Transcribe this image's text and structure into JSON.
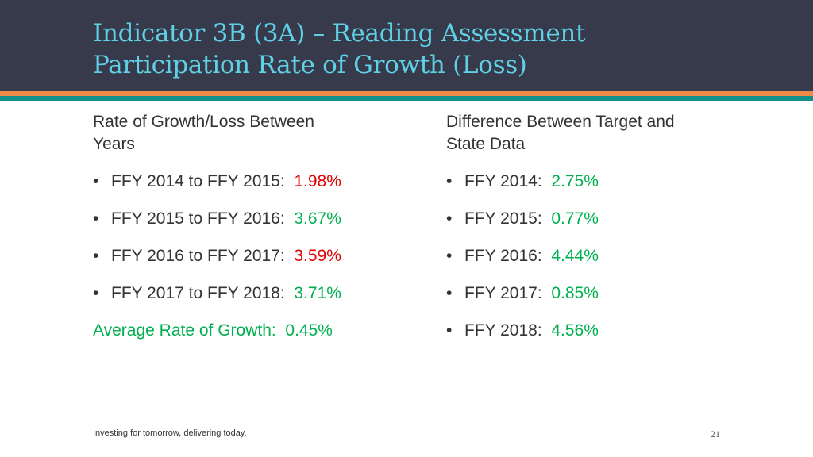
{
  "header": {
    "title_line1": "Indicator 3B (3A) – Reading Assessment",
    "title_line2": "Participation Rate of Growth (Loss)"
  },
  "left_column": {
    "heading_line1": "Rate of Growth/Loss Between",
    "heading_line2": "Years",
    "items": [
      {
        "label": "FFY 2014 to FFY 2015:",
        "value": "1.98%",
        "value_color": "red"
      },
      {
        "label": "FFY 2015 to FFY 2016:",
        "value": "3.67%",
        "value_color": "green"
      },
      {
        "label": "FFY 2016 to FFY 2017:",
        "value": "3.59%",
        "value_color": "red"
      },
      {
        "label": "FFY 2017 to FFY 2018:",
        "value": "3.71%",
        "value_color": "green"
      }
    ],
    "average": {
      "label": "Average Rate of Growth:",
      "value": "0.45%"
    }
  },
  "right_column": {
    "heading_line1": "Difference Between Target and",
    "heading_line2": "State Data",
    "items": [
      {
        "label": "FFY 2014:",
        "value": "2.75%",
        "value_color": "green"
      },
      {
        "label": "FFY 2015:",
        "value": "0.77%",
        "value_color": "green"
      },
      {
        "label": "FFY 2016:",
        "value": "4.44%",
        "value_color": "green"
      },
      {
        "label": "FFY 2017:",
        "value": "0.85%",
        "value_color": "green"
      },
      {
        "label": "FFY 2018:",
        "value": "4.56%",
        "value_color": "green"
      }
    ]
  },
  "footer": {
    "tagline": "Investing for tomorrow, delivering today.",
    "page_number": "21"
  },
  "colors": {
    "header_bg": "#363a4a",
    "title": "#5fd0e6",
    "stripe_orange": "#f08a4b",
    "stripe_teal": "#12918c",
    "green": "#00b050",
    "red": "#e00000"
  }
}
